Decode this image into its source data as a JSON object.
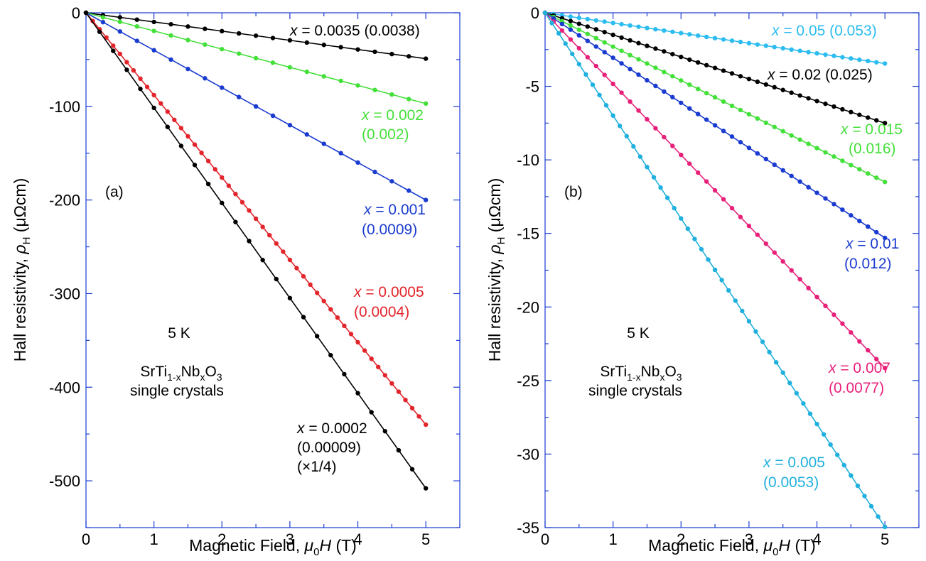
{
  "chart_data": [
    {
      "type": "line",
      "panel_label": "(a)",
      "xlabel": "Magnetic Field, μ0H (T)",
      "ylabel": "Hall resistivity, ρH (μΩcm)",
      "xlim": [
        0,
        5.5
      ],
      "ylim": [
        -550,
        0
      ],
      "xticks": [
        "0",
        "1",
        "2",
        "3",
        "4",
        "5"
      ],
      "yticks": [
        "0",
        "-100",
        "-200",
        "-300",
        "-400",
        "-500"
      ],
      "grid": false,
      "temperature_label": "5 K",
      "material_label": {
        "base": "SrTi",
        "sub1": "1-x",
        "mid": "Nb",
        "sub2": "x",
        "end": "O",
        "sub3": "3"
      },
      "crystal_label": "single crystals",
      "series": [
        {
          "x_label": "x",
          "eq": " = 0.0035",
          "extra": " (0.0038)",
          "color": "#000000",
          "slope": -9.8,
          "npts": 20
        },
        {
          "x_label": "x",
          "eq": " = 0.002",
          "extra": "(0.002)",
          "color": "#44e03a",
          "slope": -19.4,
          "npts": 20
        },
        {
          "x_label": "x",
          "eq": " = 0.001",
          "extra": "(0.0009)",
          "color": "#1a3bd0",
          "slope": -40.0,
          "npts": 20
        },
        {
          "x_label": "x",
          "eq": " = 0.0005",
          "extra": "(0.0004)",
          "color": "#e3242b",
          "slope": -88.0,
          "npts": 50
        },
        {
          "x_label": "x",
          "eq": " = 0.0002",
          "extra": "(0.00009)",
          "extra2": "(×1/4)",
          "color": "#000000",
          "slope": -101.6,
          "npts": 25
        }
      ]
    },
    {
      "type": "line",
      "panel_label": "(b)",
      "xlabel": "Magnetic Field, μ0H (T)",
      "ylabel": "Hall resistivity, ρH (μΩcm)",
      "xlim": [
        0,
        5.5
      ],
      "ylim": [
        -35,
        0
      ],
      "xticks": [
        "0",
        "1",
        "2",
        "3",
        "4",
        "5"
      ],
      "yticks": [
        "0",
        "-5",
        "-10",
        "-15",
        "-20",
        "-25",
        "-30",
        "-35"
      ],
      "grid": false,
      "temperature_label": "5 K",
      "material_label": {
        "base": "SrTi",
        "sub1": "1-x",
        "mid": "Nb",
        "sub2": "x",
        "end": "O",
        "sub3": "3"
      },
      "crystal_label": "single crystals",
      "series": [
        {
          "x_label": "x",
          "eq": " = 0.05",
          "extra": " (0.053)",
          "color": "#2bbcf0",
          "slope": -0.69,
          "npts": 40
        },
        {
          "x_label": "x",
          "eq": " = 0.02",
          "extra": " (0.025)",
          "color": "#000000",
          "slope": -1.5,
          "npts": 40
        },
        {
          "x_label": "x",
          "eq": " = 0.015",
          "extra": "(0.016)",
          "color": "#44e03a",
          "slope": -2.3,
          "npts": 40
        },
        {
          "x_label": "x",
          "eq": " = 0.01",
          "extra": "(0.012)",
          "color": "#1a3bd0",
          "slope": -3.06,
          "npts": 40
        },
        {
          "x_label": "x",
          "eq": " = 0.007",
          "extra": "(0.0077)",
          "color": "#e8207a",
          "slope": -4.83,
          "npts": 40
        },
        {
          "x_label": "x",
          "eq": " = 0.005",
          "extra": "(0.0053)",
          "color": "#1fb0de",
          "slope": -6.99,
          "npts": 50
        }
      ]
    }
  ]
}
